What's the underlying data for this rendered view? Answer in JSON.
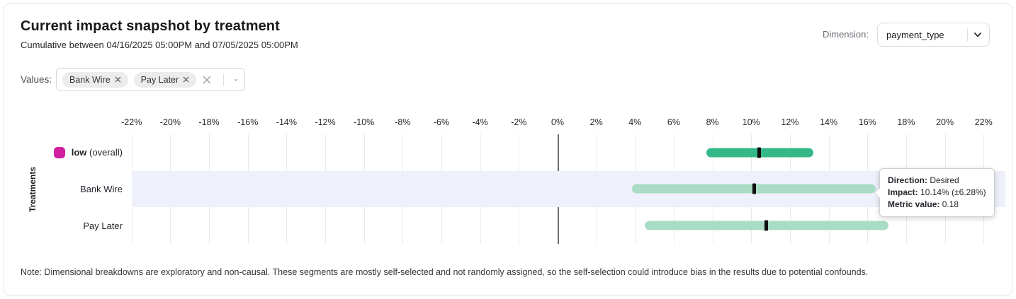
{
  "header": {
    "title": "Current impact snapshot by treatment",
    "subtitle": "Cumulative between 04/16/2025 05:00PM and 07/05/2025 05:00PM",
    "dimension_label": "Dimension:",
    "dimension_value": "payment_type"
  },
  "values_filter": {
    "label": "Values:",
    "chips": [
      {
        "label": "Bank Wire"
      },
      {
        "label": "Pay Later"
      }
    ]
  },
  "chart_data": {
    "type": "interval",
    "title": "Current impact snapshot by treatment",
    "ylabel": "Treatments",
    "x_axis": {
      "min": -22,
      "max": 22,
      "tick_step": 2,
      "unit": "%"
    },
    "grid": true,
    "rows": [
      {
        "name": "low",
        "suffix": "(overall)",
        "overall": true,
        "swatch": "#d2219e",
        "bar_color": "#35b887",
        "low": 7.7,
        "high": 13.2,
        "impact": 10.4,
        "band": false
      },
      {
        "name": "Bank Wire",
        "suffix": "",
        "overall": false,
        "swatch": null,
        "bar_color": "#a9dcc4",
        "low": 3.86,
        "high": 16.42,
        "impact": 10.14,
        "band": true
      },
      {
        "name": "Pay Later",
        "suffix": "",
        "overall": false,
        "swatch": null,
        "bar_color": "#a9dcc4",
        "low": 4.5,
        "high": 17.1,
        "impact": 10.76,
        "band": false
      }
    ]
  },
  "tooltip": {
    "direction_label": "Direction:",
    "direction_value": "Desired",
    "impact_label": "Impact:",
    "impact_value": "10.14% (±6.28%)",
    "metric_label": "Metric value:",
    "metric_value": "0.18"
  },
  "note": "Note: Dimensional breakdowns are exploratory and non-causal. These segments are mostly self-selected and not randomly assigned, so the self-selection could introduce bias in the results due to potential confounds.",
  "colors": {
    "overall_bar": "#35b887",
    "dimension_bar": "#a9dcc4",
    "legend_swatch": "#d2219e",
    "row_highlight": "#eef0fb",
    "zero_line": "#6e6e6e",
    "gridline": "#ebebeb"
  }
}
